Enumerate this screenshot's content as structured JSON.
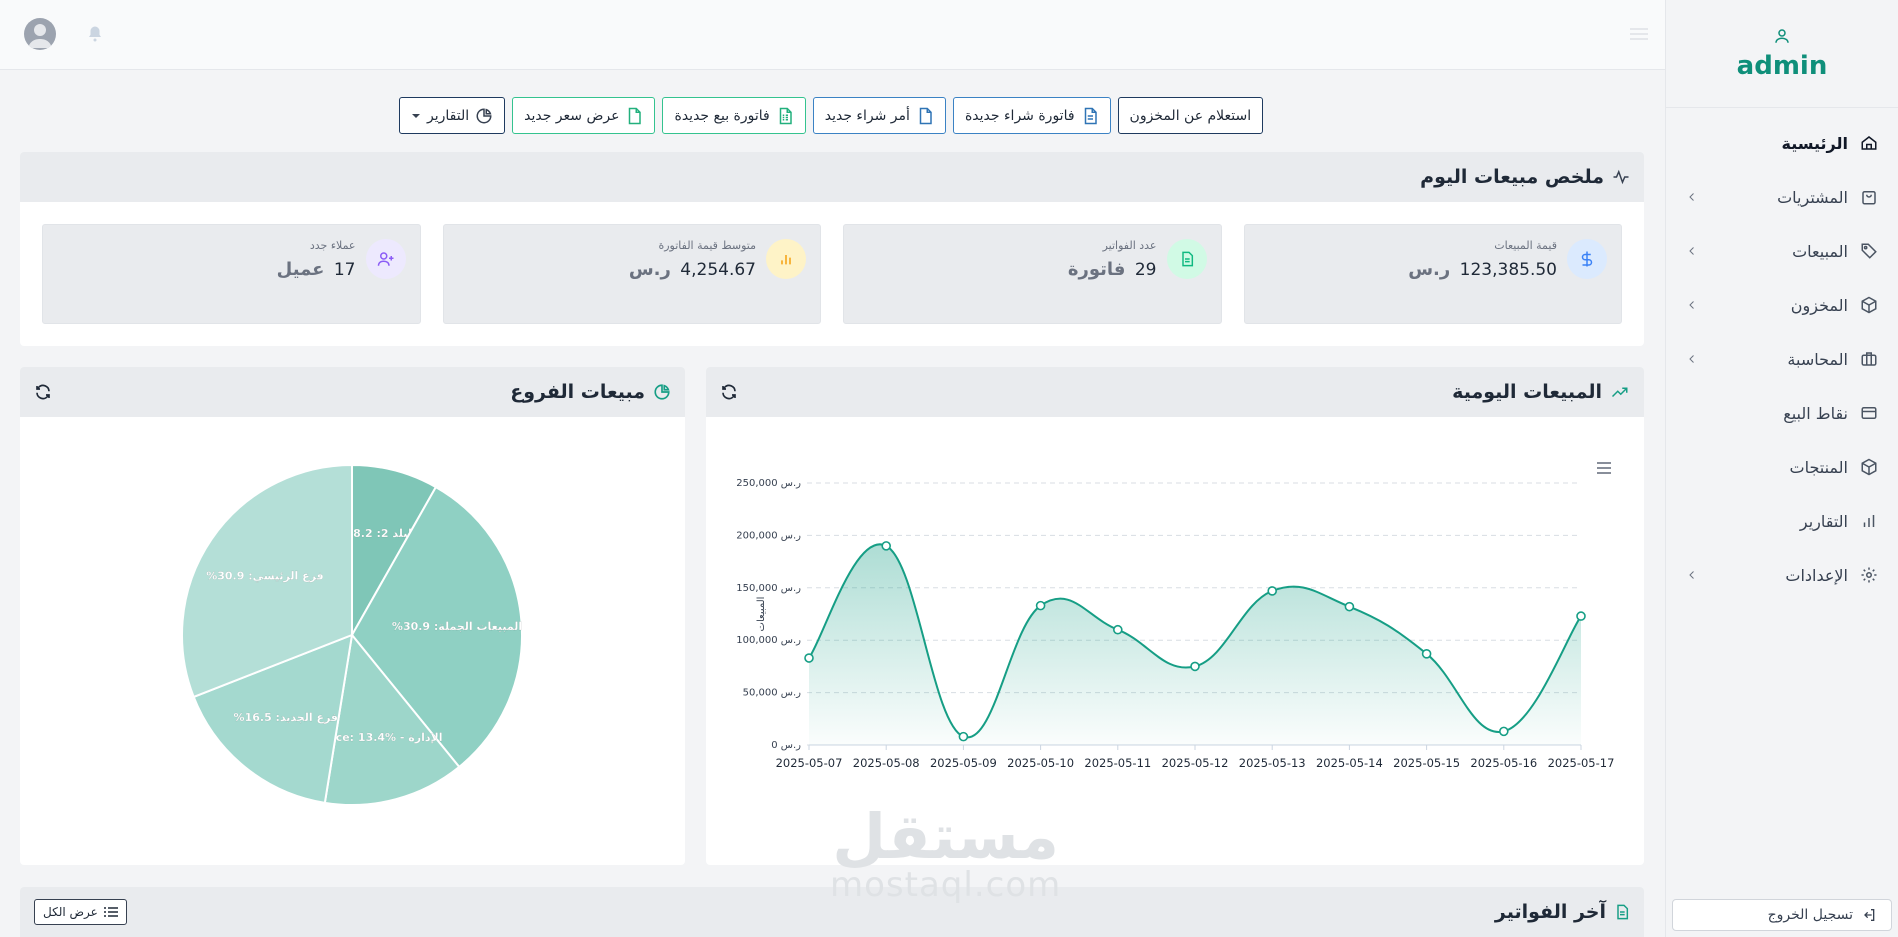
{
  "sidebar": {
    "user_name": "admin",
    "items": [
      {
        "label": "الرئيسية",
        "icon": "home-icon",
        "active": true,
        "has_children": false
      },
      {
        "label": "المشتريات",
        "icon": "shopping-bag-icon",
        "has_children": true
      },
      {
        "label": "المبيعات",
        "icon": "tag-icon",
        "has_children": true
      },
      {
        "label": "المخزون",
        "icon": "box-icon",
        "has_children": true
      },
      {
        "label": "المحاسبة",
        "icon": "briefcase-icon",
        "has_children": true
      },
      {
        "label": "نقاط البيع",
        "icon": "credit-card-icon",
        "has_children": false
      },
      {
        "label": "المنتجات",
        "icon": "cube-icon",
        "has_children": false
      },
      {
        "label": "التقارير",
        "icon": "bar-chart-icon",
        "has_children": false
      },
      {
        "label": "الإعدادات",
        "icon": "gear-icon",
        "has_children": true
      }
    ],
    "logout_label": "تسجيل الخروج"
  },
  "actions": {
    "inventory_query": "استعلام عن المخزون",
    "new_purchase_invoice": "فاتورة شراء جديدة",
    "new_purchase_order": "أمر شراء جديد",
    "new_sales_invoice": "فاتورة بيع جديدة",
    "new_quote": "عرض سعر جديد",
    "reports": "التقارير"
  },
  "summary": {
    "title": "ملخص مبيعات اليوم",
    "stats": [
      {
        "label": "قيمة المبيعات",
        "value": "123,385.50",
        "unit": "ر.س",
        "icon": "dollar-icon",
        "color": "#3b82f6",
        "bg": "#dbeafe"
      },
      {
        "label": "عدد الفواتير",
        "value": "29",
        "unit": "فاتورة",
        "icon": "document-icon",
        "color": "#10b981",
        "bg": "#d1fae5"
      },
      {
        "label": "متوسط قيمة الفاتورة",
        "value": "4,254.67",
        "unit": "ر.س",
        "icon": "bar-chart-icon",
        "color": "#f59e0b",
        "bg": "#fef3c7"
      },
      {
        "label": "عملاء جدد",
        "value": "17",
        "unit": "عميل",
        "icon": "user-plus-icon",
        "color": "#8b5cf6",
        "bg": "#ede9fe"
      }
    ]
  },
  "daily_sales": {
    "title": "المبيعات اليومية",
    "chart_data": {
      "type": "area",
      "x": [
        "2025-05-07",
        "2025-05-08",
        "2025-05-09",
        "2025-05-10",
        "2025-05-11",
        "2025-05-12",
        "2025-05-13",
        "2025-05-14",
        "2025-05-15",
        "2025-05-16",
        "2025-05-17"
      ],
      "values": [
        83000,
        190000,
        8000,
        133000,
        110000,
        75000,
        147000,
        132000,
        87000,
        13000,
        123000
      ],
      "ylabel": "المبيعات",
      "ylim": [
        0,
        250000
      ],
      "yticks": [
        "0 ر.س",
        "50,000 ر.س",
        "100,000 ر.س",
        "150,000 ر.س",
        "200,000 ر.س",
        "250,000 ر.س"
      ],
      "color": "#169e85",
      "grid": true
    }
  },
  "branch_sales": {
    "title": "مبيعات الفروع",
    "chart_data": {
      "type": "pie",
      "slices": [
        {
          "label": "البلد 2: 8.2%",
          "value": 8.2,
          "color": "#7fc6b7"
        },
        {
          "label": "المبيعات الجملة: 30.9%",
          "value": 30.9,
          "color": "#8fd0c3"
        },
        {
          "label": "الإدارة - office: 13.4%",
          "value": 13.4,
          "color": "#9dd6ca"
        },
        {
          "label": "فرع الجديد: 16.5%",
          "value": 16.5,
          "color": "#a4d9cf"
        },
        {
          "label": "فرع الرئيسي: 30.9%",
          "value": 30.9,
          "color": "#b4dfd7"
        }
      ]
    }
  },
  "latest_invoices": {
    "title": "آخر الفواتير",
    "view_all": "عرض الكل"
  },
  "watermark": {
    "arabic": "مستقل",
    "latin": "mostaql.com"
  }
}
